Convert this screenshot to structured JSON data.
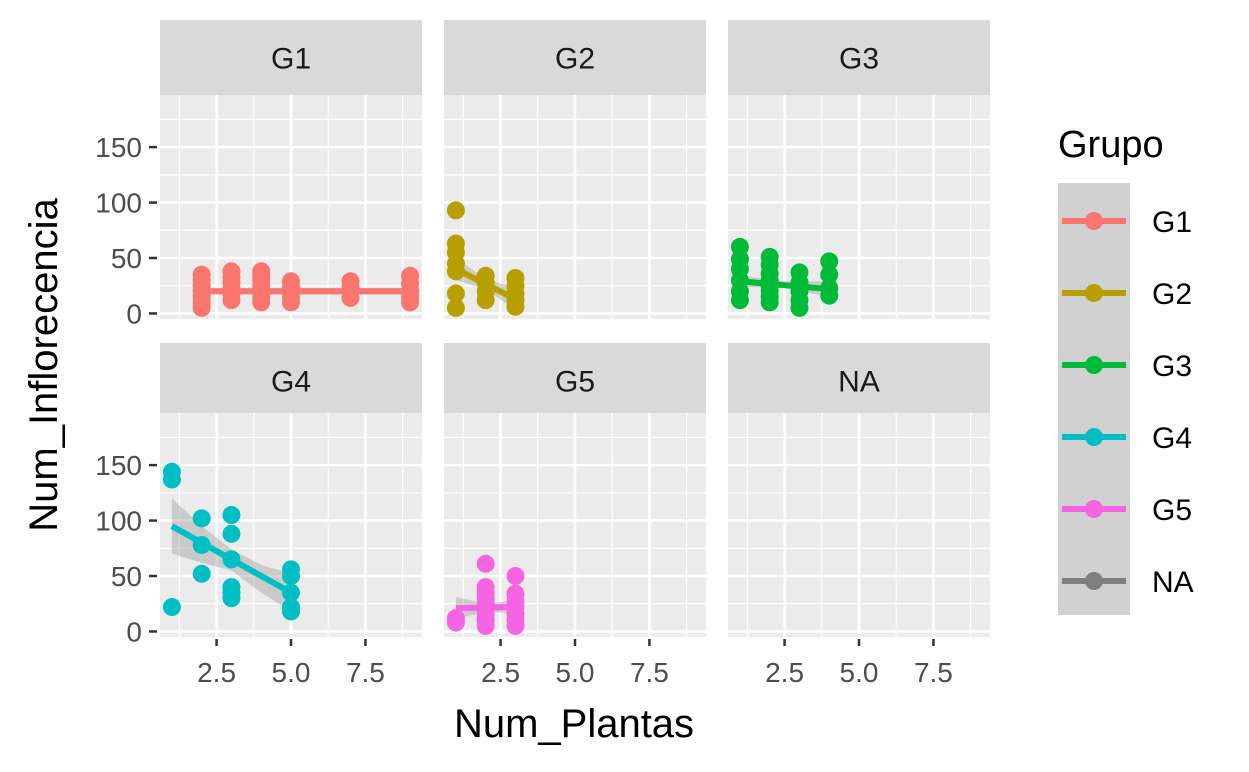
{
  "chart_data": {
    "type": "scatter",
    "title": "",
    "xlabel": "Num_Plantas",
    "ylabel": "Num_Inflorecencia",
    "xlim": [
      0.6,
      9.4
    ],
    "ylim": [
      -5,
      197
    ],
    "x_ticks": [
      2.5,
      5.0,
      7.5
    ],
    "x_tick_labels": [
      "2.5",
      "5.0",
      "7.5"
    ],
    "y_ticks": [
      0,
      50,
      100,
      150
    ],
    "y_tick_labels": [
      "0",
      "50",
      "100",
      "150"
    ],
    "grid": true,
    "facet_layout": "2x3",
    "legend": {
      "title": "Grupo",
      "placement": "right",
      "entries": [
        {
          "label": "G1",
          "color": "#F8766D"
        },
        {
          "label": "G2",
          "color": "#B79F00"
        },
        {
          "label": "G3",
          "color": "#00BA38"
        },
        {
          "label": "G4",
          "color": "#00BFC4"
        },
        {
          "label": "G5",
          "color": "#F564E3"
        },
        {
          "label": "NA",
          "color": "#7F7F7F"
        }
      ]
    },
    "panels": [
      {
        "name": "G1",
        "color": "#F8766D",
        "points": [
          [
            2,
            5
          ],
          [
            2,
            10
          ],
          [
            2,
            15
          ],
          [
            2,
            20
          ],
          [
            2,
            25
          ],
          [
            2,
            30
          ],
          [
            2,
            35
          ],
          [
            3,
            12
          ],
          [
            3,
            18
          ],
          [
            3,
            22
          ],
          [
            3,
            28
          ],
          [
            3,
            33
          ],
          [
            3,
            38
          ],
          [
            4,
            10
          ],
          [
            4,
            15
          ],
          [
            4,
            20
          ],
          [
            4,
            25
          ],
          [
            4,
            30
          ],
          [
            4,
            34
          ],
          [
            4,
            38
          ],
          [
            5,
            10
          ],
          [
            5,
            15
          ],
          [
            5,
            20
          ],
          [
            5,
            24
          ],
          [
            5,
            29
          ],
          [
            7,
            14
          ],
          [
            7,
            20
          ],
          [
            7,
            24
          ],
          [
            7,
            29
          ],
          [
            9,
            10
          ],
          [
            9,
            15
          ],
          [
            9,
            20
          ],
          [
            9,
            27
          ],
          [
            9,
            34
          ]
        ],
        "fit": {
          "x": [
            2,
            9
          ],
          "y": [
            20,
            20
          ]
        },
        "band": {
          "x": [
            2,
            9
          ],
          "upper": [
            23,
            23
          ],
          "lower": [
            17,
            17
          ]
        }
      },
      {
        "name": "G2",
        "color": "#B79F00",
        "points": [
          [
            1,
            5
          ],
          [
            1,
            18
          ],
          [
            1,
            38
          ],
          [
            1,
            45
          ],
          [
            1,
            55
          ],
          [
            1,
            63
          ],
          [
            1,
            93
          ],
          [
            2,
            12
          ],
          [
            2,
            20
          ],
          [
            2,
            28
          ],
          [
            2,
            34
          ],
          [
            3,
            6
          ],
          [
            3,
            12
          ],
          [
            3,
            18
          ],
          [
            3,
            25
          ],
          [
            3,
            32
          ]
        ],
        "fit": {
          "x": [
            1,
            3
          ],
          "y": [
            40,
            13
          ]
        },
        "band": {
          "x": [
            1,
            2,
            3
          ],
          "upper": [
            50,
            31,
            23
          ],
          "lower": [
            30,
            22,
            3
          ]
        }
      },
      {
        "name": "G3",
        "color": "#00BA38",
        "points": [
          [
            1,
            12
          ],
          [
            1,
            20
          ],
          [
            1,
            30
          ],
          [
            1,
            40
          ],
          [
            1,
            49
          ],
          [
            1,
            60
          ],
          [
            2,
            10
          ],
          [
            2,
            15
          ],
          [
            2,
            20
          ],
          [
            2,
            25
          ],
          [
            2,
            30
          ],
          [
            2,
            36
          ],
          [
            2,
            44
          ],
          [
            2,
            51
          ],
          [
            3,
            5
          ],
          [
            3,
            12
          ],
          [
            3,
            20
          ],
          [
            3,
            28
          ],
          [
            3,
            37
          ],
          [
            4,
            16
          ],
          [
            4,
            23
          ],
          [
            4,
            35
          ],
          [
            4,
            47
          ]
        ],
        "fit": {
          "x": [
            1,
            4
          ],
          "y": [
            29,
            22
          ]
        },
        "band": {
          "x": [
            1,
            2.5,
            4
          ],
          "upper": [
            34,
            29,
            29
          ],
          "lower": [
            24,
            23,
            15
          ]
        }
      },
      {
        "name": "G4",
        "color": "#00BFC4",
        "points": [
          [
            1,
            22
          ],
          [
            1,
            137
          ],
          [
            1,
            144
          ],
          [
            2,
            52
          ],
          [
            2,
            78
          ],
          [
            2,
            102
          ],
          [
            3,
            30
          ],
          [
            3,
            35
          ],
          [
            3,
            40
          ],
          [
            3,
            65
          ],
          [
            3,
            88
          ],
          [
            3,
            105
          ],
          [
            5,
            18
          ],
          [
            5,
            22
          ],
          [
            5,
            35
          ],
          [
            5,
            50
          ],
          [
            5,
            56
          ]
        ],
        "fit": {
          "x": [
            1,
            5
          ],
          "y": [
            95,
            35
          ]
        },
        "band": {
          "x": [
            1,
            2,
            3,
            4,
            5
          ],
          "upper": [
            120,
            95,
            74,
            60,
            52
          ],
          "lower": [
            70,
            62,
            55,
            35,
            18
          ]
        }
      },
      {
        "name": "G5",
        "color": "#F564E3",
        "points": [
          [
            1,
            8
          ],
          [
            1,
            12
          ],
          [
            2,
            5
          ],
          [
            2,
            10
          ],
          [
            2,
            15
          ],
          [
            2,
            20
          ],
          [
            2,
            25
          ],
          [
            2,
            30
          ],
          [
            2,
            35
          ],
          [
            2,
            40
          ],
          [
            2,
            61
          ],
          [
            3,
            5
          ],
          [
            3,
            10
          ],
          [
            3,
            16
          ],
          [
            3,
            22
          ],
          [
            3,
            27
          ],
          [
            3,
            34
          ],
          [
            3,
            50
          ]
        ],
        "fit": {
          "x": [
            1,
            3
          ],
          "y": [
            21,
            22
          ]
        },
        "band": {
          "x": [
            1,
            2,
            3
          ],
          "upper": [
            31,
            25,
            28
          ],
          "lower": [
            11,
            18,
            16
          ]
        }
      },
      {
        "name": "NA",
        "color": "#7F7F7F",
        "points": [],
        "fit": null,
        "band": null
      }
    ]
  }
}
